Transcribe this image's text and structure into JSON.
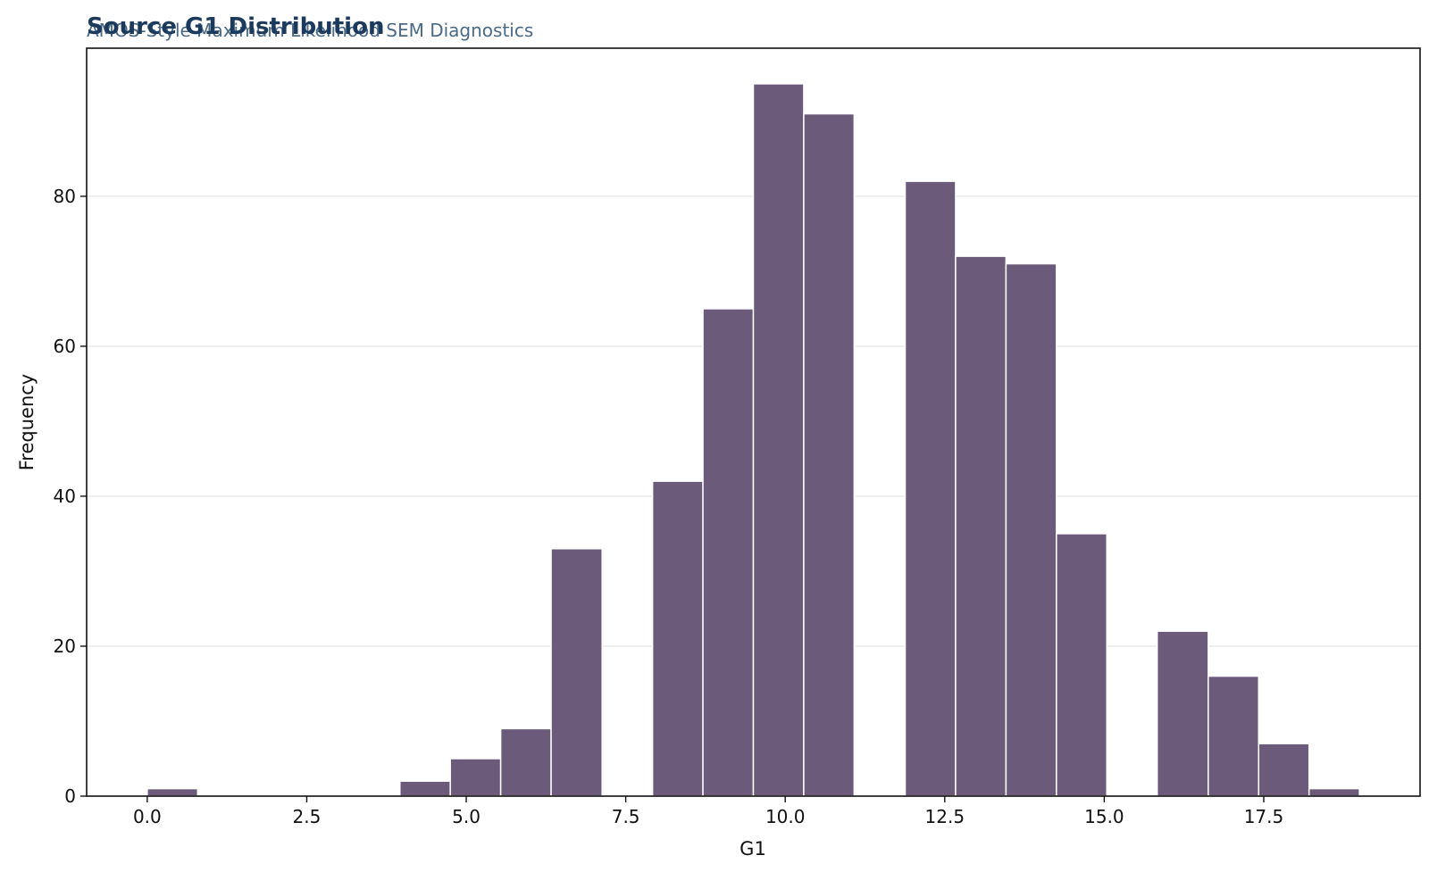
{
  "chart_data": {
    "type": "bar",
    "title": "Source G1 Distribution",
    "subtitle": "AMOS-Style Maximum Likelihood SEM Diagnostics",
    "xlabel": "G1",
    "ylabel": "Frequency",
    "bar_color": "#6b5a7a",
    "title_color": "#1b3a5c",
    "subtitle_color": "#4a6a86",
    "grid": "horizontal",
    "xlim": [
      -0.95,
      19.95
    ],
    "ylim": [
      0,
      99.75
    ],
    "xticks": [
      "0.0",
      "2.5",
      "5.0",
      "7.5",
      "10.0",
      "12.5",
      "15.0",
      "17.5"
    ],
    "yticks": [
      "0",
      "20",
      "40",
      "60",
      "80"
    ],
    "bins": [
      {
        "x0": 0.0,
        "x1": 0.79,
        "count": 1
      },
      {
        "x0": 3.96,
        "x1": 4.75,
        "count": 2
      },
      {
        "x0": 4.75,
        "x1": 5.54,
        "count": 5
      },
      {
        "x0": 5.54,
        "x1": 6.33,
        "count": 9
      },
      {
        "x0": 6.33,
        "x1": 7.13,
        "count": 33
      },
      {
        "x0": 7.92,
        "x1": 8.71,
        "count": 42
      },
      {
        "x0": 8.71,
        "x1": 9.5,
        "count": 65
      },
      {
        "x0": 9.5,
        "x1": 10.29,
        "count": 95
      },
      {
        "x0": 10.29,
        "x1": 11.08,
        "count": 91
      },
      {
        "x0": 11.88,
        "x1": 12.67,
        "count": 82
      },
      {
        "x0": 12.67,
        "x1": 13.46,
        "count": 72
      },
      {
        "x0": 13.46,
        "x1": 14.25,
        "count": 71
      },
      {
        "x0": 14.25,
        "x1": 15.04,
        "count": 35
      },
      {
        "x0": 15.83,
        "x1": 16.63,
        "count": 22
      },
      {
        "x0": 16.63,
        "x1": 17.42,
        "count": 16
      },
      {
        "x0": 17.42,
        "x1": 18.21,
        "count": 7
      },
      {
        "x0": 18.21,
        "x1": 19.0,
        "count": 1
      }
    ]
  }
}
